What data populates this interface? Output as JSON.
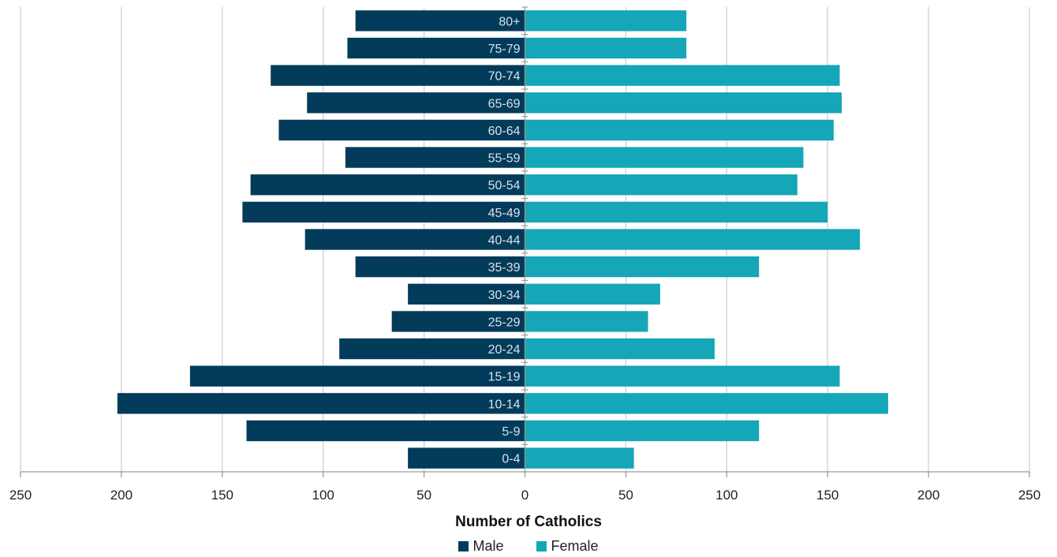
{
  "chart_data": {
    "type": "bar",
    "orientation": "horizontal",
    "layout": "population-pyramid",
    "xlabel": "Number of Catholics",
    "xlim": [
      -250,
      250
    ],
    "xticks": [
      -250,
      -200,
      -150,
      -100,
      -50,
      0,
      50,
      100,
      150,
      200,
      250
    ],
    "xtick_labels": [
      "250",
      "200",
      "150",
      "100",
      "50",
      "0",
      "50",
      "100",
      "150",
      "200",
      "250"
    ],
    "grid": true,
    "legend_position": "bottom",
    "categories": [
      "0-4",
      "5-9",
      "10-14",
      "15-19",
      "20-24",
      "25-29",
      "30-34",
      "35-39",
      "40-44",
      "45-49",
      "50-54",
      "55-59",
      "60-64",
      "65-69",
      "70-74",
      "75-79",
      "80+"
    ],
    "series": [
      {
        "name": "Male",
        "side": "left",
        "color": "#033b5a",
        "values": [
          58,
          138,
          202,
          166,
          92,
          66,
          58,
          84,
          109,
          140,
          136,
          89,
          122,
          108,
          126,
          88,
          84
        ]
      },
      {
        "name": "Female",
        "side": "right",
        "color": "#15a6b7",
        "values": [
          54,
          116,
          180,
          156,
          94,
          61,
          67,
          116,
          166,
          150,
          135,
          138,
          153,
          157,
          156,
          80,
          80
        ]
      }
    ]
  }
}
